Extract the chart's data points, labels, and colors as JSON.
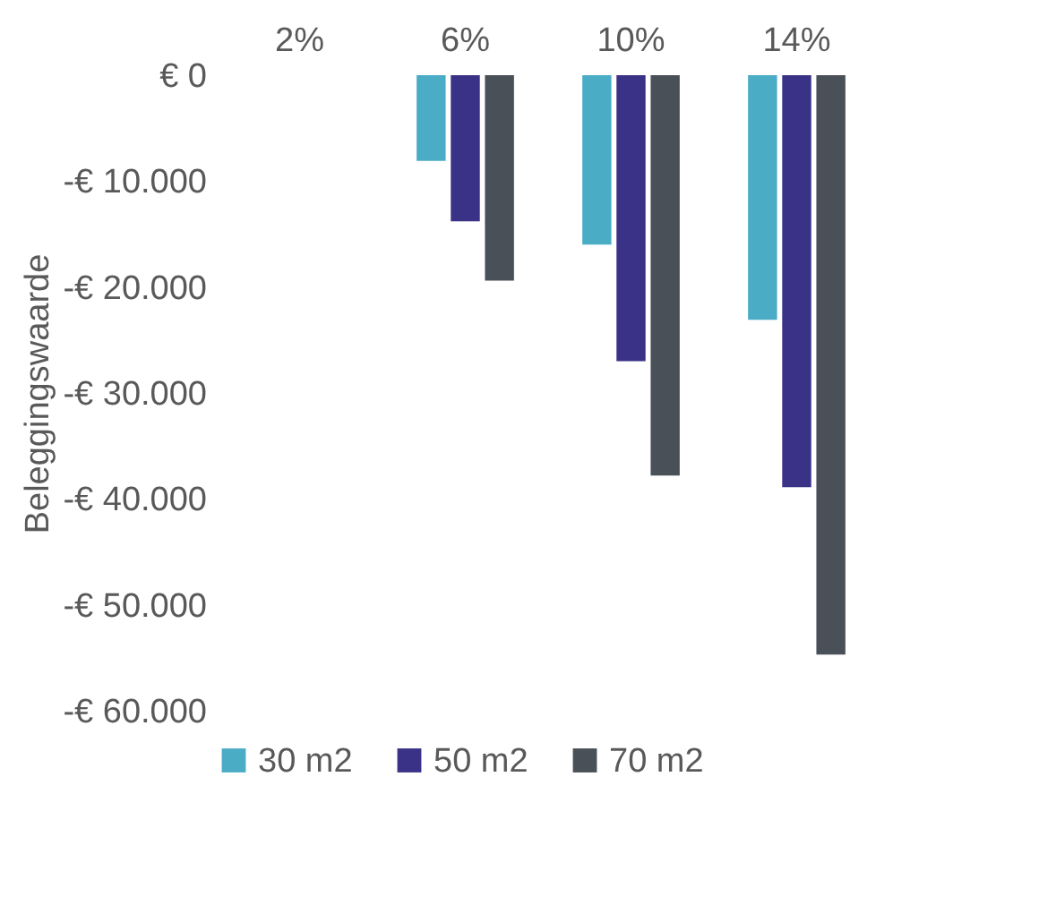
{
  "chart_data": {
    "type": "bar",
    "ylabel": "Beleggingswaarde",
    "categories": [
      "2%",
      "6%",
      "10%",
      "14%"
    ],
    "series": [
      {
        "name": "30 m2",
        "color": "#4bacc6",
        "values": [
          0,
          -8100,
          -16000,
          -23100
        ]
      },
      {
        "name": "50 m2",
        "color": "#3a3286",
        "values": [
          0,
          -13800,
          -27000,
          -38900
        ]
      },
      {
        "name": "70 m2",
        "color": "#4a5058",
        "values": [
          0,
          -19400,
          -37800,
          -54700
        ]
      }
    ],
    "ylim": [
      -60000,
      0
    ],
    "yticks": [
      {
        "value": 0,
        "label": "€ 0"
      },
      {
        "value": -10000,
        "label": "-€ 10.000"
      },
      {
        "value": -20000,
        "label": "-€ 20.000"
      },
      {
        "value": -30000,
        "label": "-€ 30.000"
      },
      {
        "value": -40000,
        "label": "-€ 40.000"
      },
      {
        "value": -50000,
        "label": "-€ 50.000"
      },
      {
        "value": -60000,
        "label": "-€ 60.000"
      }
    ],
    "grid": false,
    "legend": "bottom"
  }
}
